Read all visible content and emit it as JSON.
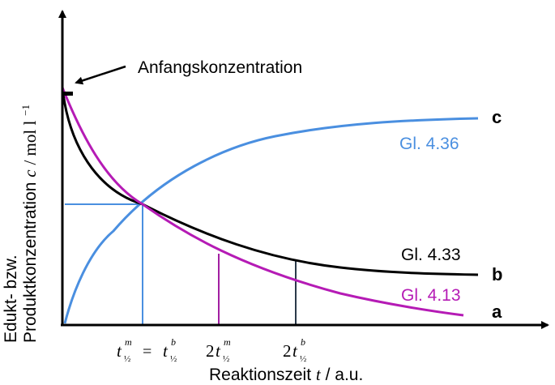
{
  "colors": {
    "axis": "#000000",
    "curve_a": "#b51bb5",
    "curve_b": "#000000",
    "curve_c": "#4a8fe0",
    "guide_blue": "#4a8fe0",
    "guide_purple": "#a21ea2",
    "guide_dark": "#2a3a4a"
  },
  "labels": {
    "annotation": "Anfangskonzentration",
    "y_label_line1": "Edukt- bzw.",
    "y_label_line2_text": "Produktkonzentration ",
    "y_label_line2_var": "c",
    "y_label_line2_unit": " / mol l",
    "y_label_line2_exp": "−1",
    "x_label_text": "Reaktionszeit ",
    "x_label_var": "t",
    "x_label_unit": " / a.u.",
    "tick1_left_base": "t",
    "tick1_left_sup": "m",
    "tick1_left_sub": "½",
    "tick1_eq": "=",
    "tick1_right_base": "t",
    "tick1_right_sup": "b",
    "tick1_right_sub": "½",
    "tick2_coef": "2",
    "tick2_base": "t",
    "tick2_sup": "m",
    "tick2_sub": "½",
    "tick3_coef": "2",
    "tick3_base": "t",
    "tick3_sup": "b",
    "tick3_sub": "½"
  },
  "chart_data": {
    "type": "line",
    "title": "",
    "xlabel": "Reaktionszeit t / a.u.",
    "ylabel": "Edukt- bzw. Produktkonzentration c / mol l−1",
    "series": [
      {
        "name": "a",
        "equation_label": "Gl. 4.13",
        "key": "a"
      },
      {
        "name": "b",
        "equation_label": "Gl. 4.33",
        "key": "b"
      },
      {
        "name": "c",
        "equation_label": "Gl. 4.36",
        "key": "c"
      }
    ],
    "x_ticks": [
      "t½m = t½b",
      "2t½m",
      "2t½b"
    ],
    "annotations": [
      "Anfangskonzentration"
    ],
    "grid": false,
    "legend": "inline labels at right"
  }
}
